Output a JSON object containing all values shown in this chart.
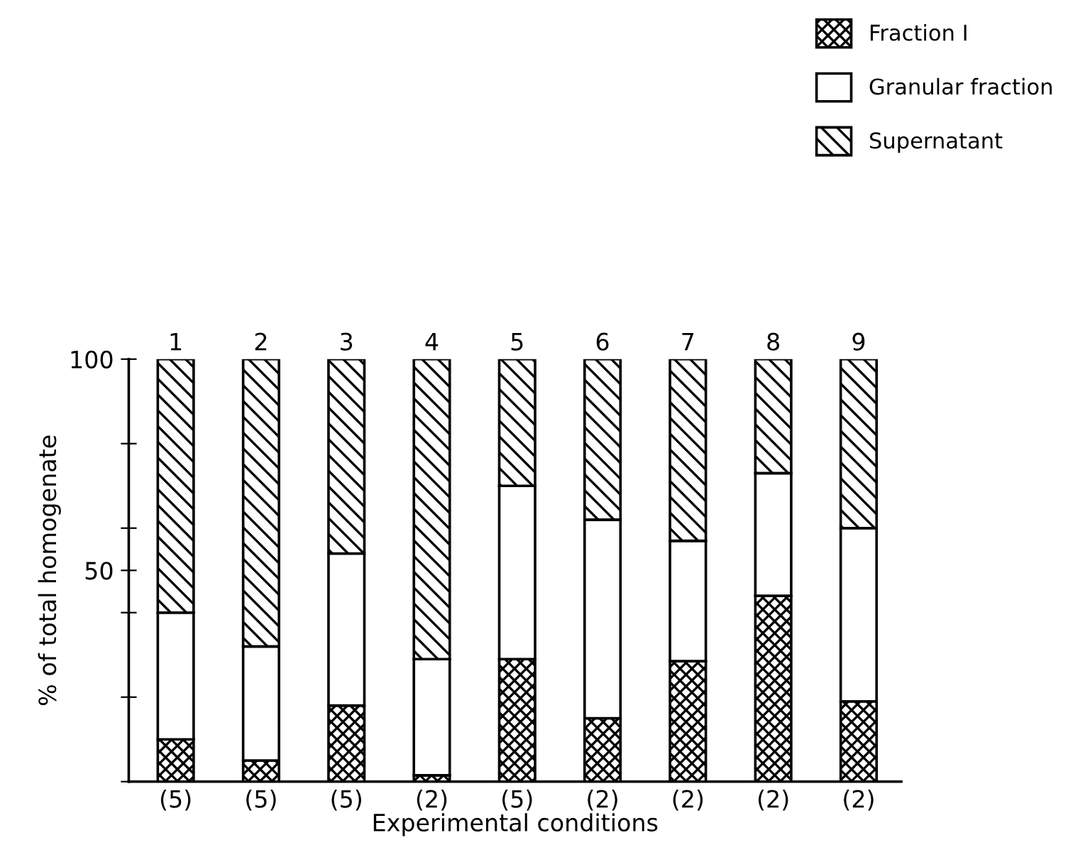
{
  "chart_data": {
    "type": "bar",
    "stacked": true,
    "ylabel": "% of total homogenate",
    "xlabel": "Experimental conditions",
    "categories": [
      "1",
      "2",
      "3",
      "4",
      "5",
      "6",
      "7",
      "8",
      "9"
    ],
    "series": [
      {
        "name": "Fraction I",
        "color": "#000000",
        "values": [
          10,
          5,
          18,
          1.5,
          29,
          15,
          28.5,
          44,
          19
        ]
      },
      {
        "name": "Granular fraction",
        "color": "#000000",
        "values": [
          30,
          27,
          36,
          27.5,
          41,
          47,
          28.5,
          29,
          41
        ]
      },
      {
        "name": "Supernatant",
        "color": "#000000",
        "values": [
          60,
          68,
          46,
          71,
          30,
          38,
          43,
          27,
          40
        ]
      }
    ],
    "ylim": [
      0,
      100
    ],
    "yticks": [
      {
        "value": 0,
        "label": null
      },
      {
        "value": 20,
        "label": null
      },
      {
        "value": 40,
        "label": null
      },
      50,
      {
        "value": 60,
        "label": null
      },
      {
        "value": 80,
        "label": null
      },
      100
    ],
    "annotations": [
      "(5)",
      "(5)",
      "(5)",
      "(2)",
      "(5)",
      "(2)",
      "(2)",
      "(2)",
      "(2)"
    ],
    "legend": "top right",
    "grid": false
  }
}
